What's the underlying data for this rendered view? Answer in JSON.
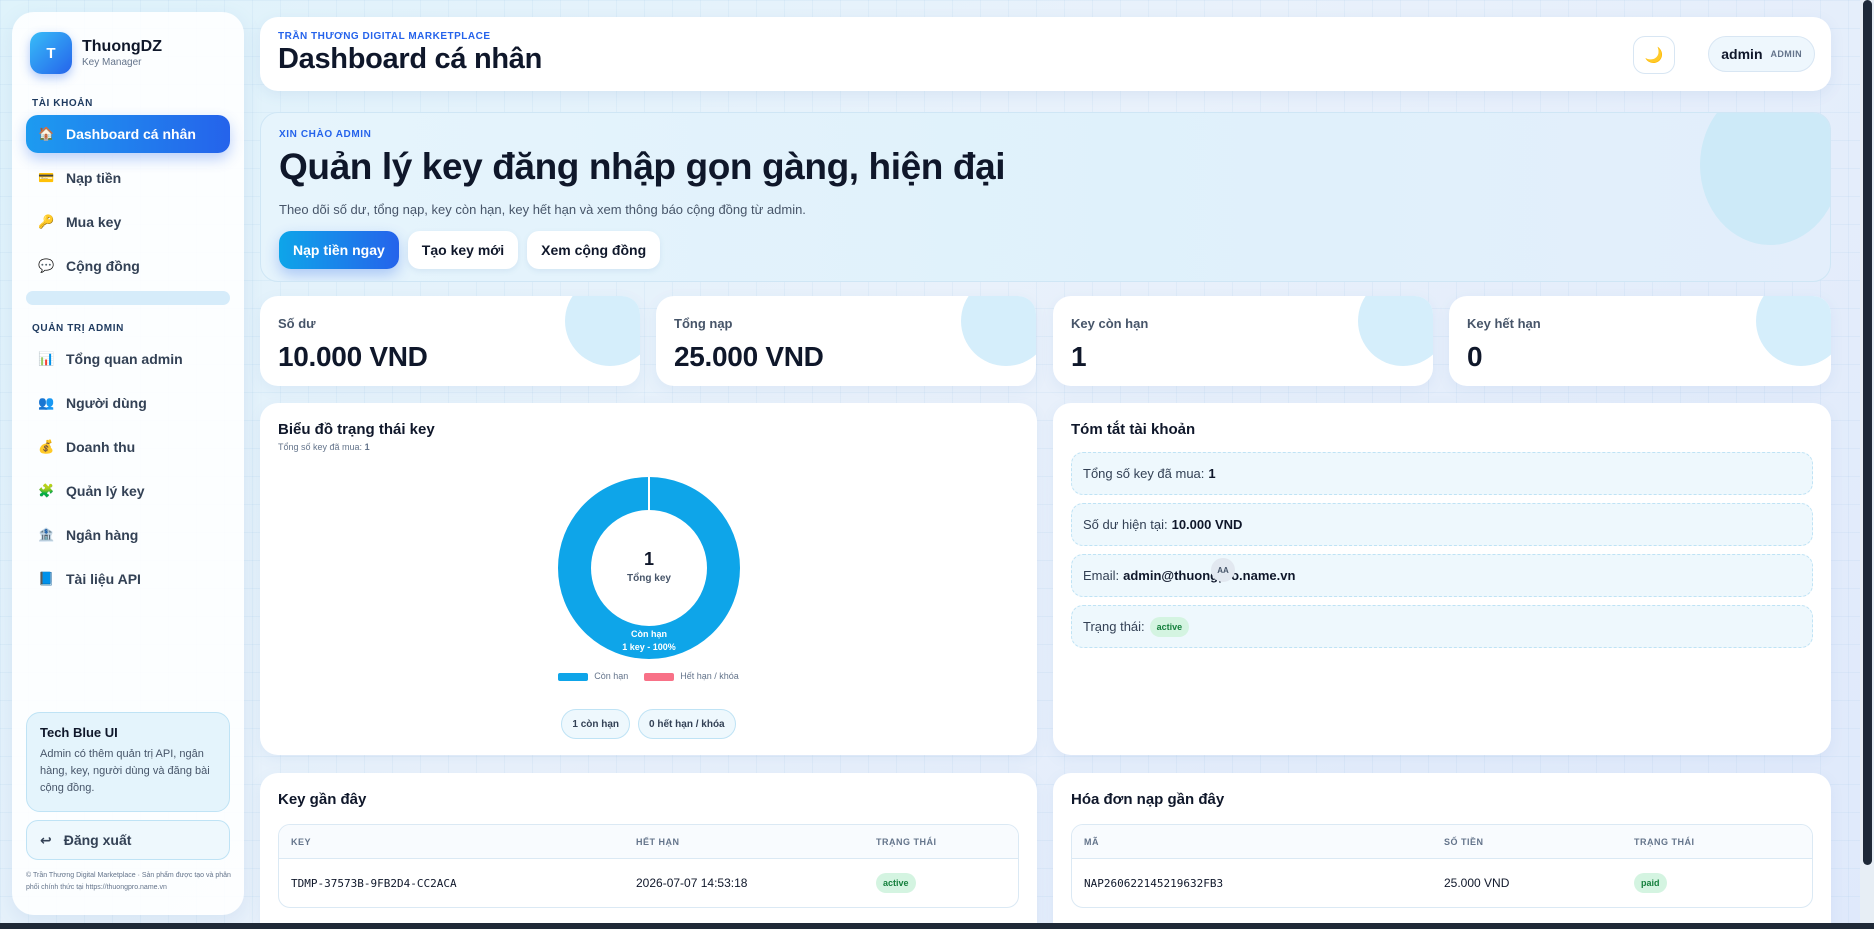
{
  "brand": {
    "logo_letter": "T",
    "name": "ThuongDZ",
    "sub": "Key Manager"
  },
  "sidebar": {
    "section_account": "TÀI KHOẢN",
    "account_items": [
      {
        "icon": "home-icon",
        "glyph": "🏠",
        "label": "Dashboard cá nhân",
        "active": true
      },
      {
        "icon": "credit-card-icon",
        "glyph": "💳",
        "label": "Nạp tiền"
      },
      {
        "icon": "key-icon",
        "glyph": "🔑",
        "label": "Mua key"
      },
      {
        "icon": "chat-icon",
        "glyph": "💬",
        "label": "Cộng đồng"
      }
    ],
    "section_admin": "QUẢN TRỊ ADMIN",
    "admin_items": [
      {
        "icon": "chart-icon",
        "glyph": "📊",
        "label": "Tổng quan admin"
      },
      {
        "icon": "users-icon",
        "glyph": "👥",
        "label": "Người dùng"
      },
      {
        "icon": "money-bag-icon",
        "glyph": "💰",
        "label": "Doanh thu"
      },
      {
        "icon": "puzzle-icon",
        "glyph": "🧩",
        "label": "Quản lý key"
      },
      {
        "icon": "bank-icon",
        "glyph": "🏦",
        "label": "Ngân hàng"
      },
      {
        "icon": "book-icon",
        "glyph": "📘",
        "label": "Tài liệu API"
      }
    ],
    "tip": {
      "title": "Tech Blue UI",
      "text": "Admin có thêm quản trị API, ngân hàng, key, người dùng và đăng bài cộng đồng."
    },
    "logout": {
      "glyph": "↩",
      "label": "Đăng xuất"
    },
    "footnote": "© Trần Thương Digital Marketplace · Sản phẩm được tạo và phân phối chính thức tại https://thuongpro.name.vn"
  },
  "header": {
    "eyebrow": "TRẦN THƯƠNG DIGITAL MARKETPLACE",
    "title": "Dashboard cá nhân",
    "theme_glyph": "🌙",
    "user": {
      "name": "admin",
      "role": "ADMIN"
    }
  },
  "hero": {
    "eyebrow": "XIN CHÀO ADMIN",
    "title": "Quản lý key đăng nhập gọn gàng, hiện đại",
    "desc": "Theo dõi số dư, tổng nạp, key còn hạn, key hết hạn và xem thông báo cộng đồng từ admin.",
    "buttons": {
      "primary": "Nạp tiền ngay",
      "create": "Tạo key mới",
      "community": "Xem cộng đồng"
    }
  },
  "stats": [
    {
      "label": "Số dư",
      "value": "10.000 VND"
    },
    {
      "label": "Tổng nạp",
      "value": "25.000 VND"
    },
    {
      "label": "Key còn hạn",
      "value": "1"
    },
    {
      "label": "Key hết hạn",
      "value": "0"
    }
  ],
  "chart_card": {
    "title": "Biểu đồ trạng thái key",
    "sub_label": "Tổng số key đã mua:",
    "sub_value": "1",
    "center_value": "1",
    "center_label": "Tổng key",
    "slice_label_1": "Còn hạn",
    "slice_label_2": "1 key - 100%",
    "chips": {
      "active_num": "1",
      "active_text": "còn hạn",
      "expired_num": "0",
      "expired_text": "hết hạn / khóa"
    }
  },
  "chart_data": {
    "type": "pie",
    "categories": [
      "Còn hạn",
      "Hết hạn / khóa"
    ],
    "values": [
      1,
      0
    ],
    "colors": [
      "#0ea5e9",
      "#f87187"
    ],
    "legend_placement": "bottom"
  },
  "summary": {
    "title": "Tóm tắt tài khoản",
    "rows": [
      {
        "label": "Tổng số key đã mua:",
        "value": "1"
      },
      {
        "label": "Số dư hiện tại:",
        "value": "10.000 VND"
      },
      {
        "label": "Email:",
        "value": "admin@thuongpro.name.vn"
      },
      {
        "label": "Trạng thái:",
        "value": "active"
      }
    ],
    "aa_badge": "AA"
  },
  "recent_keys": {
    "title": "Key gần đây",
    "columns": [
      "KEY",
      "HẾT HẠN",
      "TRẠNG THÁI"
    ],
    "rows": [
      {
        "key": "TDMP-37573B-9FB2D4-CC2ACA",
        "expires": "2026-07-07 14:53:18",
        "status": "active"
      }
    ]
  },
  "recent_invoices": {
    "title": "Hóa đơn nạp gần đây",
    "columns": [
      "MÃ",
      "SỐ TIỀN",
      "TRẠNG THÁI"
    ],
    "rows": [
      {
        "code": "NAP260622145219632FB3",
        "amount": "25.000 VND",
        "status": "paid"
      }
    ]
  }
}
